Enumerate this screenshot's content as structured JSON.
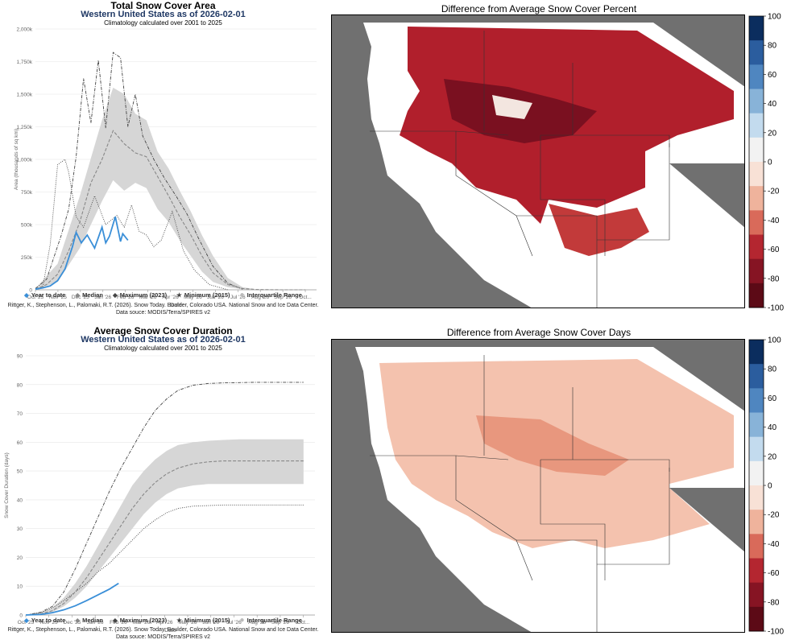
{
  "top_chart": {
    "title": "Total Snow Cover Area",
    "subtitle": "Western United States as of 2026-02-01",
    "subtitle2": "Climatology calculated over 2001 to 2025",
    "ylabel": "Area (thousands of sq km)",
    "xlabel": "Date",
    "yticks": [
      "0",
      "250k",
      "500k",
      "750k",
      "1,000k",
      "1,250k",
      "1,500k",
      "1,750k",
      "2,000k"
    ],
    "xticks": [
      "Oct '25",
      "Nov '25",
      "Dec '25",
      "Jan '26",
      "Feb '26",
      "Mar '26",
      "Apr '26",
      "May '26",
      "Jun '26",
      "Jul '26",
      "Aug '26",
      "Sep '26",
      "Oct..."
    ],
    "credit1": "Rittger, K., Stephenson, L., Palomaki, R.T. (2026). Snow Today. Boulder, Colorado USA. National Snow and Ice Data Center.",
    "credit2": "Data souce: MODIS/Terra/SPIRES v2"
  },
  "bottom_chart": {
    "title": "Average Snow Cover Duration",
    "subtitle": "Western United States as of 2026-02-01",
    "subtitle2": "Climatology calculated over 2001 to 2025",
    "ylabel": "Snow Cover Duration (days)",
    "xlabel": "Date",
    "yticks": [
      "0",
      "10",
      "20",
      "30",
      "40",
      "50",
      "60",
      "70",
      "80",
      "90"
    ],
    "xticks": [
      "Oct '25",
      "Nov '25",
      "Dec '25",
      "Jan '26",
      "Feb '26",
      "Mar '26",
      "Apr '26",
      "May '26",
      "Jun '26",
      "Jul '26",
      "Aug '26",
      "Sep '26",
      "Oct..."
    ],
    "credit1": "Rittger, K., Stephenson, L., Palomaki, R.T. (2026). Snow Today. Boulder, Colorado USA. National Snow and Ice Data Center.",
    "credit2": "Data souce: MODIS/Terra/SPIRES v2"
  },
  "legend": {
    "ytd": "Year to date",
    "median": "Median",
    "max": "Maximum (2023)",
    "min": "Minimum (2015)",
    "iqr": "Interquartile Range"
  },
  "colors": {
    "ytd": "#3a8fd8",
    "median": "#888888",
    "max": "#444444",
    "min": "#444444",
    "iqr": "#d9d9d9",
    "map_gray": "#707070"
  },
  "maps": {
    "top_title": "Difference from Average Snow Cover Percent",
    "bottom_title": "Difference from Average Snow Cover Days",
    "colorbar_ticks": [
      "100",
      "80",
      "60",
      "40",
      "20",
      "0",
      "-20",
      "-40",
      "-60",
      "-80",
      "-100"
    ],
    "colorbar_colors": [
      "#0b2d5e",
      "#2b5d9e",
      "#4f86c0",
      "#88b3d8",
      "#c3dbee",
      "#f2f2f2",
      "#f8e1d6",
      "#efb39c",
      "#d96a5a",
      "#b42630",
      "#861423",
      "#5c0a16"
    ]
  },
  "chart_data": [
    {
      "type": "line",
      "title": "Total Snow Cover Area",
      "xlabel": "Date",
      "ylabel": "Area (thousands of sq km)",
      "x_day_offsets_note": "days since Oct 1 2025",
      "ylim": [
        0,
        2000
      ],
      "series": [
        {
          "name": "Year to date",
          "x": [
            0,
            10,
            20,
            30,
            40,
            50,
            55,
            62,
            70,
            80,
            90,
            95,
            100,
            108,
            115,
            118,
            125
          ],
          "y": [
            5,
            15,
            30,
            70,
            160,
            330,
            440,
            360,
            420,
            320,
            480,
            360,
            410,
            560,
            370,
            430,
            380
          ]
        },
        {
          "name": "Median",
          "x": [
            0,
            15,
            30,
            45,
            60,
            75,
            90,
            105,
            120,
            135,
            150,
            165,
            180,
            195,
            210,
            225,
            240,
            260,
            280,
            300,
            330,
            365
          ],
          "y": [
            5,
            40,
            120,
            300,
            520,
            820,
            1000,
            1220,
            1120,
            1050,
            1020,
            870,
            720,
            560,
            420,
            260,
            130,
            40,
            10,
            2,
            0,
            0
          ]
        },
        {
          "name": "Maximum (2023)",
          "x": [
            0,
            15,
            25,
            35,
            45,
            55,
            65,
            75,
            85,
            95,
            105,
            115,
            125,
            135,
            145,
            160,
            175,
            190,
            205,
            220,
            240,
            260,
            280
          ],
          "y": [
            10,
            80,
            250,
            420,
            620,
            1020,
            1620,
            1280,
            1760,
            1240,
            1820,
            1780,
            1250,
            1500,
            1180,
            1000,
            850,
            720,
            580,
            400,
            180,
            50,
            5
          ]
        },
        {
          "name": "Minimum (2015)",
          "x": [
            0,
            10,
            20,
            30,
            40,
            45,
            55,
            65,
            80,
            95,
            110,
            120,
            130,
            140,
            150,
            160,
            170,
            185,
            200,
            215,
            235,
            260
          ],
          "y": [
            0,
            20,
            350,
            960,
            1000,
            900,
            560,
            480,
            720,
            500,
            570,
            480,
            650,
            450,
            420,
            330,
            380,
            600,
            300,
            150,
            40,
            0
          ]
        },
        {
          "name": "Interquartile Range",
          "x": [
            0,
            30,
            60,
            90,
            105,
            120,
            135,
            150,
            165,
            180,
            195,
            210,
            225,
            240,
            260,
            280,
            300
          ],
          "lower": [
            0,
            60,
            320,
            680,
            840,
            760,
            820,
            780,
            620,
            520,
            380,
            260,
            140,
            60,
            20,
            5,
            0
          ],
          "upper": [
            10,
            200,
            720,
            1300,
            1550,
            1500,
            1350,
            1300,
            1060,
            930,
            760,
            600,
            420,
            260,
            90,
            20,
            2
          ]
        }
      ]
    },
    {
      "type": "line",
      "title": "Average Snow Cover Duration",
      "xlabel": "Date",
      "ylabel": "Snow Cover Duration (days)",
      "x_day_offsets_note": "days since Oct 1 2025",
      "ylim": [
        0,
        90
      ],
      "series": [
        {
          "name": "Year to date",
          "x": [
            0,
            20,
            35,
            50,
            65,
            80,
            95,
            110,
            122
          ],
          "y": [
            0,
            0.2,
            0.8,
            1.8,
            3.2,
            5.0,
            7.0,
            9.0,
            11.0
          ]
        },
        {
          "name": "Median",
          "x": [
            0,
            20,
            35,
            50,
            65,
            80,
            95,
            110,
            125,
            140,
            155,
            170,
            185,
            200,
            220,
            240,
            260,
            280,
            300,
            330,
            365
          ],
          "y": [
            0,
            0.4,
            1.5,
            4,
            8,
            13,
            19,
            25,
            31,
            37,
            42,
            46,
            49,
            51,
            52.5,
            53.2,
            53.5,
            53.5,
            53.5,
            53.5,
            53.5
          ]
        },
        {
          "name": "Maximum (2023)",
          "x": [
            0,
            20,
            35,
            50,
            65,
            80,
            95,
            110,
            125,
            140,
            155,
            170,
            185,
            200,
            220,
            240,
            260,
            280,
            300,
            330,
            365
          ],
          "y": [
            0,
            1,
            3,
            8,
            16,
            25,
            34,
            43,
            51,
            58,
            65,
            71,
            75,
            78,
            79.8,
            80.4,
            80.6,
            80.7,
            80.8,
            80.8,
            80.8
          ]
        },
        {
          "name": "Minimum (2015)",
          "x": [
            0,
            20,
            35,
            50,
            65,
            80,
            95,
            110,
            125,
            140,
            155,
            170,
            185,
            200,
            220,
            240,
            260,
            280,
            300,
            330,
            365
          ],
          "y": [
            0,
            0.8,
            2.5,
            5,
            8,
            11,
            15,
            18,
            22,
            26,
            30,
            33,
            35.5,
            37,
            37.8,
            38,
            38.2,
            38.2,
            38.2,
            38.2,
            38.2
          ]
        },
        {
          "name": "Interquartile Range",
          "x": [
            0,
            20,
            35,
            50,
            65,
            80,
            95,
            110,
            125,
            140,
            155,
            170,
            185,
            200,
            220,
            240,
            260,
            280,
            300,
            330,
            365
          ],
          "lower": [
            0,
            0.2,
            1,
            3,
            6,
            10,
            15,
            20,
            25,
            30,
            35,
            39,
            42,
            44,
            45,
            45.5,
            45.5,
            45.5,
            45.5,
            45.5,
            45.5
          ],
          "upper": [
            0,
            0.8,
            2.5,
            6,
            11,
            17,
            24,
            31,
            38,
            45,
            50,
            54,
            57,
            59,
            60,
            60.5,
            60.8,
            61,
            61,
            61,
            61
          ]
        }
      ]
    }
  ]
}
